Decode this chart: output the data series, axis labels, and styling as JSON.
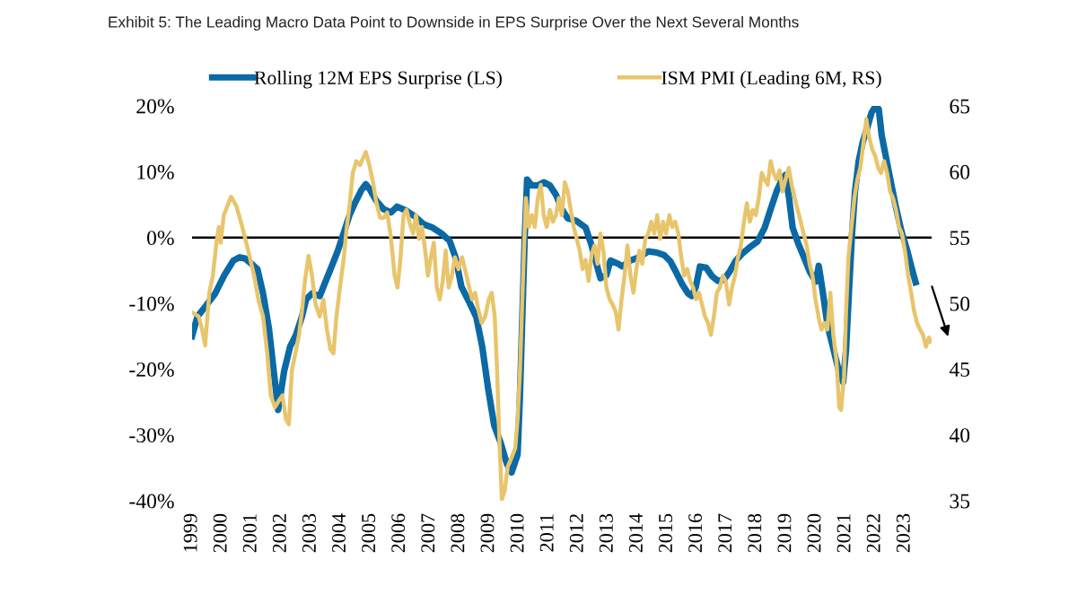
{
  "chart_data": {
    "type": "line",
    "title": "Exhibit 5: The Leading Macro Data Point to Downside in EPS Surprise Over the Next Several Months",
    "xlim": [
      1999,
      2023.9
    ],
    "xticks": [
      1999,
      2000,
      2001,
      2002,
      2003,
      2004,
      2005,
      2006,
      2007,
      2008,
      2009,
      2010,
      2011,
      2012,
      2013,
      2014,
      2015,
      2016,
      2017,
      2018,
      2019,
      2020,
      2021,
      2022,
      2023
    ],
    "ylim": [
      -40,
      20
    ],
    "yticks": [
      {
        "value": -40,
        "label": "-40%"
      },
      {
        "value": -30,
        "label": "-30%"
      },
      {
        "value": -20,
        "label": "-20%"
      },
      {
        "value": -10,
        "label": "-10%"
      },
      {
        "value": 0,
        "label": "0%"
      },
      {
        "value": 10,
        "label": "10%"
      },
      {
        "value": 20,
        "label": "20%"
      }
    ],
    "y2lim": [
      35,
      65
    ],
    "y2ticks": [
      35,
      40,
      45,
      50,
      55,
      60,
      65
    ],
    "legend": "top",
    "ref_lines": [
      {
        "axis": "y",
        "value": 0,
        "color": "#000000"
      }
    ],
    "series": [
      {
        "name": "Rolling 12M EPS Surprise (LS)",
        "color": "#0b69a5",
        "x": [
          1999.0,
          1999.18,
          1999.48,
          1999.78,
          2000.09,
          2000.39,
          2000.6,
          2000.79,
          2001.0,
          2001.2,
          2001.39,
          2001.59,
          2001.75,
          2001.9,
          2002.1,
          2002.3,
          2002.5,
          2002.7,
          2002.84,
          2003.04,
          2003.3,
          2003.5,
          2003.7,
          2003.9,
          2004.1,
          2004.3,
          2004.5,
          2004.7,
          2004.85,
          2005.0,
          2005.2,
          2005.45,
          2005.7,
          2005.9,
          2006.2,
          2006.5,
          2006.8,
          2007.1,
          2007.4,
          2007.67,
          2007.87,
          2008.07,
          2008.33,
          2008.57,
          2008.77,
          2008.97,
          2009.17,
          2009.39,
          2009.6,
          2009.76,
          2009.96,
          2010.04,
          2010.12,
          2010.2,
          2010.28,
          2010.44,
          2010.64,
          2010.84,
          2011.05,
          2011.25,
          2011.45,
          2011.65,
          2011.95,
          2012.25,
          2012.45,
          2012.61,
          2012.75,
          2012.95,
          2013.09,
          2013.35,
          2013.49,
          2013.75,
          2014.06,
          2014.36,
          2014.66,
          2014.9,
          2015.1,
          2015.3,
          2015.5,
          2015.7,
          2015.82,
          2015.96,
          2016.1,
          2016.31,
          2016.51,
          2016.71,
          2016.91,
          2017.11,
          2017.31,
          2017.51,
          2017.77,
          2018.04,
          2018.28,
          2018.48,
          2018.68,
          2018.88,
          2018.98,
          2019.1,
          2019.22,
          2019.4,
          2019.6,
          2019.8,
          2020.0,
          2020.1,
          2020.22,
          2020.4,
          2020.58,
          2020.76,
          2020.92,
          2021.02,
          2021.12,
          2021.22,
          2021.32,
          2021.44,
          2021.58,
          2021.72,
          2021.88,
          2022.02,
          2022.12,
          2022.22,
          2022.48,
          2022.68,
          2022.88,
          2023.08,
          2023.22,
          2023.36
        ],
        "values": [
          -15.0,
          -12.0,
          -10.3,
          -8.5,
          -5.7,
          -3.5,
          -3.0,
          -3.2,
          -4.0,
          -4.8,
          -8.5,
          -13.9,
          -20.3,
          -26.2,
          -20.3,
          -16.6,
          -14.8,
          -12.0,
          -9.4,
          -8.5,
          -8.9,
          -6.6,
          -4.4,
          -2.1,
          0.6,
          3.4,
          5.4,
          7.2,
          8.1,
          7.2,
          5.6,
          4.3,
          3.8,
          4.7,
          4.1,
          3.2,
          2.0,
          1.5,
          0.6,
          -0.5,
          -3.0,
          -7.5,
          -9.8,
          -12.1,
          -16.6,
          -23.0,
          -28.5,
          -31.2,
          -34.4,
          -35.7,
          -33.0,
          -24.0,
          -12.0,
          0.0,
          8.8,
          7.9,
          7.9,
          8.4,
          7.9,
          6.5,
          4.3,
          2.9,
          2.5,
          1.5,
          -1.2,
          -3.9,
          -6.2,
          -5.7,
          -3.5,
          -4.0,
          -4.4,
          -3.5,
          -3.0,
          -2.1,
          -2.3,
          -2.7,
          -3.6,
          -5.3,
          -7.1,
          -8.5,
          -8.9,
          -7.5,
          -4.4,
          -4.6,
          -5.9,
          -6.6,
          -6.4,
          -5.1,
          -3.5,
          -2.5,
          -1.5,
          -0.6,
          1.5,
          4.3,
          7.0,
          9.0,
          9.5,
          6.0,
          1.5,
          -0.8,
          -3.0,
          -5.2,
          -6.7,
          -4.3,
          -7.8,
          -13.5,
          -16.7,
          -20.0,
          -22.0,
          -17.0,
          -8.0,
          0.5,
          7.0,
          11.5,
          14.5,
          16.5,
          19.0,
          20.0,
          19.5,
          15.5,
          9.5,
          5.0,
          1.0,
          -2.0,
          -4.5,
          -6.8
        ]
      },
      {
        "name": "ISM PMI (Leading 6M, RS)",
        "color": "#e8c56c",
        "axis": "y2",
        "x": [
          1999.0,
          1999.22,
          1999.34,
          1999.44,
          1999.58,
          1999.7,
          1999.82,
          1999.9,
          1999.96,
          2000.07,
          2000.19,
          2000.31,
          2000.49,
          2000.69,
          2000.89,
          2001.09,
          2001.23,
          2001.39,
          2001.53,
          2001.65,
          2001.79,
          2001.92,
          2002.04,
          2002.16,
          2002.26,
          2002.36,
          2002.48,
          2002.6,
          2002.7,
          2002.8,
          2002.92,
          2003.04,
          2003.16,
          2003.3,
          2003.42,
          2003.54,
          2003.66,
          2003.76,
          2003.86,
          2003.98,
          2004.11,
          2004.21,
          2004.31,
          2004.41,
          2004.53,
          2004.65,
          2004.75,
          2004.85,
          2004.97,
          2005.09,
          2005.21,
          2005.33,
          2005.45,
          2005.57,
          2005.69,
          2005.82,
          2005.92,
          2006.02,
          2006.12,
          2006.22,
          2006.34,
          2006.44,
          2006.54,
          2006.64,
          2006.74,
          2006.84,
          2006.94,
          2007.04,
          2007.14,
          2007.24,
          2007.34,
          2007.44,
          2007.54,
          2007.64,
          2007.75,
          2007.85,
          2007.97,
          2008.09,
          2008.21,
          2008.33,
          2008.43,
          2008.53,
          2008.65,
          2008.75,
          2008.87,
          2008.99,
          2009.09,
          2009.19,
          2009.27,
          2009.35,
          2009.43,
          2009.53,
          2009.63,
          2009.76,
          2009.88,
          2009.96,
          2010.04,
          2010.1,
          2010.16,
          2010.24,
          2010.34,
          2010.44,
          2010.54,
          2010.64,
          2010.74,
          2010.84,
          2010.94,
          2011.05,
          2011.15,
          2011.25,
          2011.35,
          2011.45,
          2011.55,
          2011.65,
          2011.75,
          2011.85,
          2011.95,
          2012.05,
          2012.15,
          2012.25,
          2012.35,
          2012.45,
          2012.55,
          2012.65,
          2012.75,
          2012.85,
          2012.95,
          2013.06,
          2013.16,
          2013.26,
          2013.36,
          2013.46,
          2013.56,
          2013.66,
          2013.76,
          2013.86,
          2013.96,
          2014.06,
          2014.16,
          2014.26,
          2014.36,
          2014.46,
          2014.56,
          2014.66,
          2014.76,
          2014.86,
          2014.96,
          2015.07,
          2015.17,
          2015.27,
          2015.37,
          2015.47,
          2015.57,
          2015.67,
          2015.77,
          2015.87,
          2015.97,
          2016.07,
          2016.17,
          2016.27,
          2016.37,
          2016.47,
          2016.57,
          2016.67,
          2016.77,
          2016.87,
          2016.97,
          2017.08,
          2017.18,
          2017.28,
          2017.38,
          2017.48,
          2017.58,
          2017.68,
          2017.78,
          2017.88,
          2017.98,
          2018.08,
          2018.18,
          2018.28,
          2018.38,
          2018.48,
          2018.58,
          2018.68,
          2018.78,
          2018.88,
          2018.98,
          2019.09,
          2019.19,
          2019.29,
          2019.39,
          2019.49,
          2019.59,
          2019.69,
          2019.79,
          2019.89,
          2019.99,
          2020.09,
          2020.19,
          2020.29,
          2020.39,
          2020.49,
          2020.59,
          2020.69,
          2020.79,
          2020.85,
          2020.95,
          2021.02,
          2021.1,
          2021.2,
          2021.3,
          2021.4,
          2021.5,
          2021.6,
          2021.7,
          2021.8,
          2021.9,
          2022.0,
          2022.1,
          2022.2,
          2022.3,
          2022.4,
          2022.5,
          2022.6,
          2022.7,
          2022.8,
          2022.9,
          2023.0,
          2023.11,
          2023.21,
          2023.31,
          2023.41,
          2023.51,
          2023.61,
          2023.71,
          2023.81,
          2023.87
        ],
        "values": [
          49.3,
          49.0,
          48.0,
          46.8,
          50.8,
          52.1,
          54.6,
          55.8,
          54.6,
          56.7,
          57.4,
          58.1,
          57.4,
          55.8,
          54.0,
          52.1,
          50.3,
          49.0,
          46.2,
          43.0,
          42.1,
          42.6,
          43.0,
          41.2,
          40.8,
          44.9,
          46.2,
          47.6,
          49.4,
          51.7,
          53.6,
          52.1,
          49.9,
          49.0,
          50.3,
          48.0,
          46.5,
          46.2,
          49.0,
          51.2,
          53.5,
          55.8,
          57.6,
          59.9,
          60.8,
          60.5,
          61.0,
          61.5,
          60.5,
          59.2,
          57.6,
          56.5,
          56.5,
          56.9,
          55.1,
          52.1,
          51.2,
          53.5,
          56.7,
          57.1,
          56.0,
          55.3,
          56.7,
          54.9,
          55.8,
          54.2,
          52.1,
          53.5,
          54.6,
          51.2,
          50.3,
          51.7,
          54.0,
          51.2,
          52.1,
          53.5,
          52.6,
          53.5,
          52.4,
          51.2,
          50.3,
          50.8,
          49.4,
          48.5,
          49.0,
          50.3,
          50.8,
          49.0,
          44.9,
          39.4,
          35.1,
          35.8,
          37.6,
          38.3,
          39.0,
          41.2,
          44.9,
          49.0,
          53.0,
          58.0,
          55.8,
          56.7,
          55.8,
          58.0,
          59.0,
          56.7,
          55.8,
          57.1,
          56.2,
          56.7,
          58.0,
          56.7,
          59.2,
          58.5,
          57.1,
          55.8,
          54.9,
          54.0,
          52.6,
          53.3,
          51.7,
          53.7,
          54.4,
          53.0,
          55.3,
          54.0,
          51.2,
          50.3,
          49.9,
          49.4,
          48.0,
          50.3,
          52.1,
          54.4,
          52.1,
          50.8,
          52.6,
          54.0,
          53.0,
          54.9,
          55.3,
          56.2,
          55.3,
          56.7,
          54.9,
          56.2,
          55.3,
          56.7,
          55.8,
          56.2,
          55.3,
          53.5,
          52.1,
          52.6,
          51.7,
          51.2,
          50.3,
          50.8,
          49.9,
          49.0,
          48.5,
          47.6,
          49.0,
          50.8,
          51.2,
          52.1,
          51.7,
          49.9,
          51.2,
          52.1,
          53.5,
          54.4,
          56.2,
          57.6,
          56.2,
          57.1,
          56.7,
          58.0,
          59.9,
          59.4,
          59.0,
          60.8,
          59.9,
          59.4,
          60.1,
          58.5,
          59.4,
          60.3,
          59.0,
          58.0,
          57.1,
          56.2,
          55.3,
          54.4,
          53.0,
          52.1,
          50.3,
          49.0,
          48.0,
          48.5,
          48.0,
          50.8,
          47.6,
          45.8,
          42.1,
          41.9,
          44.4,
          49.4,
          53.5,
          55.8,
          58.0,
          59.4,
          60.3,
          62.1,
          64.0,
          62.6,
          61.7,
          61.2,
          60.3,
          59.9,
          60.8,
          59.9,
          58.5,
          58.0,
          57.1,
          55.8,
          55.3,
          54.0,
          52.1,
          50.8,
          49.4,
          48.5,
          48.0,
          47.6,
          46.7,
          47.4,
          47.1
        ]
      }
    ]
  }
}
